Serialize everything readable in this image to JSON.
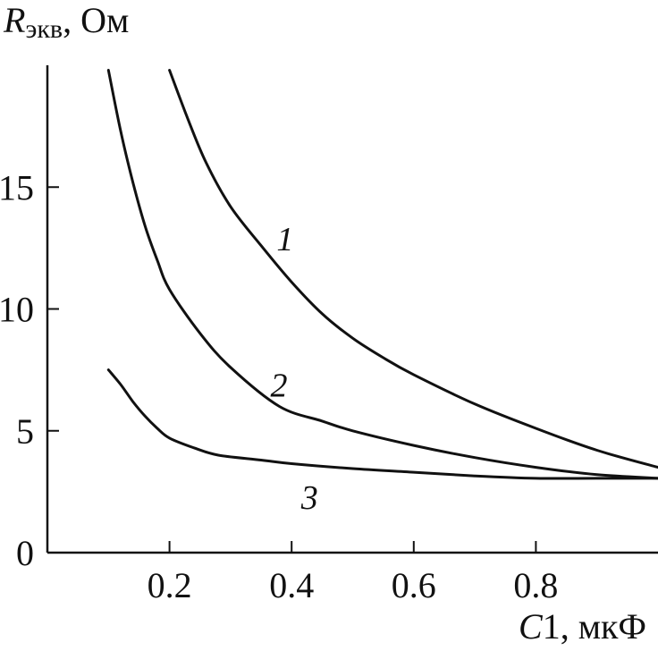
{
  "chart_data": {
    "type": "line",
    "ylabel": {
      "main": "R",
      "sub": "экв",
      "unit": ", Ом"
    },
    "xlabel": {
      "main": "C",
      "rest": "1, мкФ"
    },
    "xlim": [
      0,
      1.0
    ],
    "ylim": [
      0,
      20
    ],
    "xticks": [
      0.2,
      0.4,
      0.6,
      0.8
    ],
    "xtick_labels": [
      "0.2",
      "0.4",
      "0.6",
      "0.8"
    ],
    "yticks": [
      0,
      5,
      10,
      15
    ],
    "ytick_labels": [
      "0",
      "5",
      "10",
      "15"
    ],
    "grid": false,
    "series": [
      {
        "name": "1",
        "x": [
          0.2,
          0.23,
          0.26,
          0.3,
          0.35,
          0.4,
          0.45,
          0.5,
          0.55,
          0.6,
          0.7,
          0.8,
          0.9,
          1.0
        ],
        "y": [
          19.8,
          17.8,
          16.0,
          14.2,
          12.6,
          11.1,
          9.8,
          8.8,
          8.0,
          7.3,
          6.1,
          5.1,
          4.2,
          3.5
        ]
      },
      {
        "name": "2",
        "x": [
          0.1,
          0.12,
          0.14,
          0.16,
          0.18,
          0.2,
          0.25,
          0.3,
          0.38,
          0.45,
          0.5,
          0.6,
          0.7,
          0.8,
          0.9,
          1.0
        ],
        "y": [
          19.8,
          17.3,
          15.2,
          13.4,
          12.0,
          10.8,
          9.0,
          7.6,
          6.0,
          5.4,
          5.0,
          4.4,
          3.9,
          3.5,
          3.2,
          3.05
        ]
      },
      {
        "name": "3",
        "x": [
          0.1,
          0.12,
          0.14,
          0.16,
          0.18,
          0.2,
          0.24,
          0.28,
          0.35,
          0.4,
          0.5,
          0.6,
          0.7,
          0.8,
          0.9,
          1.0
        ],
        "y": [
          7.5,
          6.9,
          6.2,
          5.6,
          5.1,
          4.7,
          4.3,
          4.0,
          3.8,
          3.65,
          3.45,
          3.3,
          3.15,
          3.05,
          3.05,
          3.05
        ]
      }
    ]
  }
}
